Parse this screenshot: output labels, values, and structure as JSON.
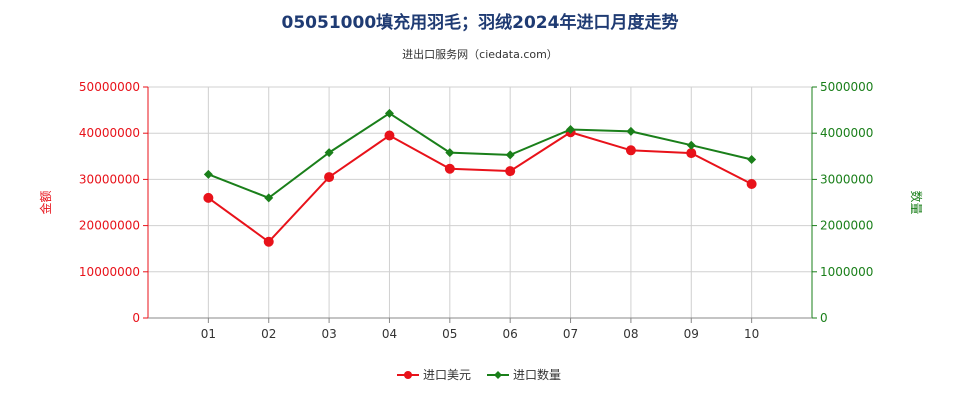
{
  "chart_data": {
    "type": "line",
    "title": "05051000填充用羽毛；羽绒2024年进口月度走势",
    "subtitle": "进出口服务网（ciedata.com）",
    "categories": [
      "01",
      "02",
      "03",
      "04",
      "05",
      "06",
      "07",
      "08",
      "09",
      "10"
    ],
    "left_axis": {
      "label": "金额",
      "ylim": [
        0,
        50000000
      ],
      "ticks": [
        "0",
        "10000000",
        "20000000",
        "30000000",
        "40000000",
        "50000000"
      ],
      "color": "#e8121a"
    },
    "right_axis": {
      "label": "数量",
      "ylim": [
        0,
        5000000
      ],
      "ticks": [
        "0",
        "1000000",
        "2000000",
        "3000000",
        "4000000",
        "5000000"
      ],
      "color": "#1a7f1a"
    },
    "series": [
      {
        "name": "进口美元",
        "axis": "left",
        "color": "#e8121a",
        "marker": "circle",
        "values": [
          26000000,
          16500000,
          30500000,
          39500000,
          32300000,
          31800000,
          40200000,
          36300000,
          35700000,
          29000000
        ]
      },
      {
        "name": "进口数量",
        "axis": "right",
        "color": "#1a7f1a",
        "marker": "diamond",
        "values": [
          3110000,
          2600000,
          3580000,
          4430000,
          3580000,
          3530000,
          4080000,
          4040000,
          3740000,
          3430000
        ]
      }
    ],
    "grid": true,
    "legend_position": "bottom-center"
  }
}
